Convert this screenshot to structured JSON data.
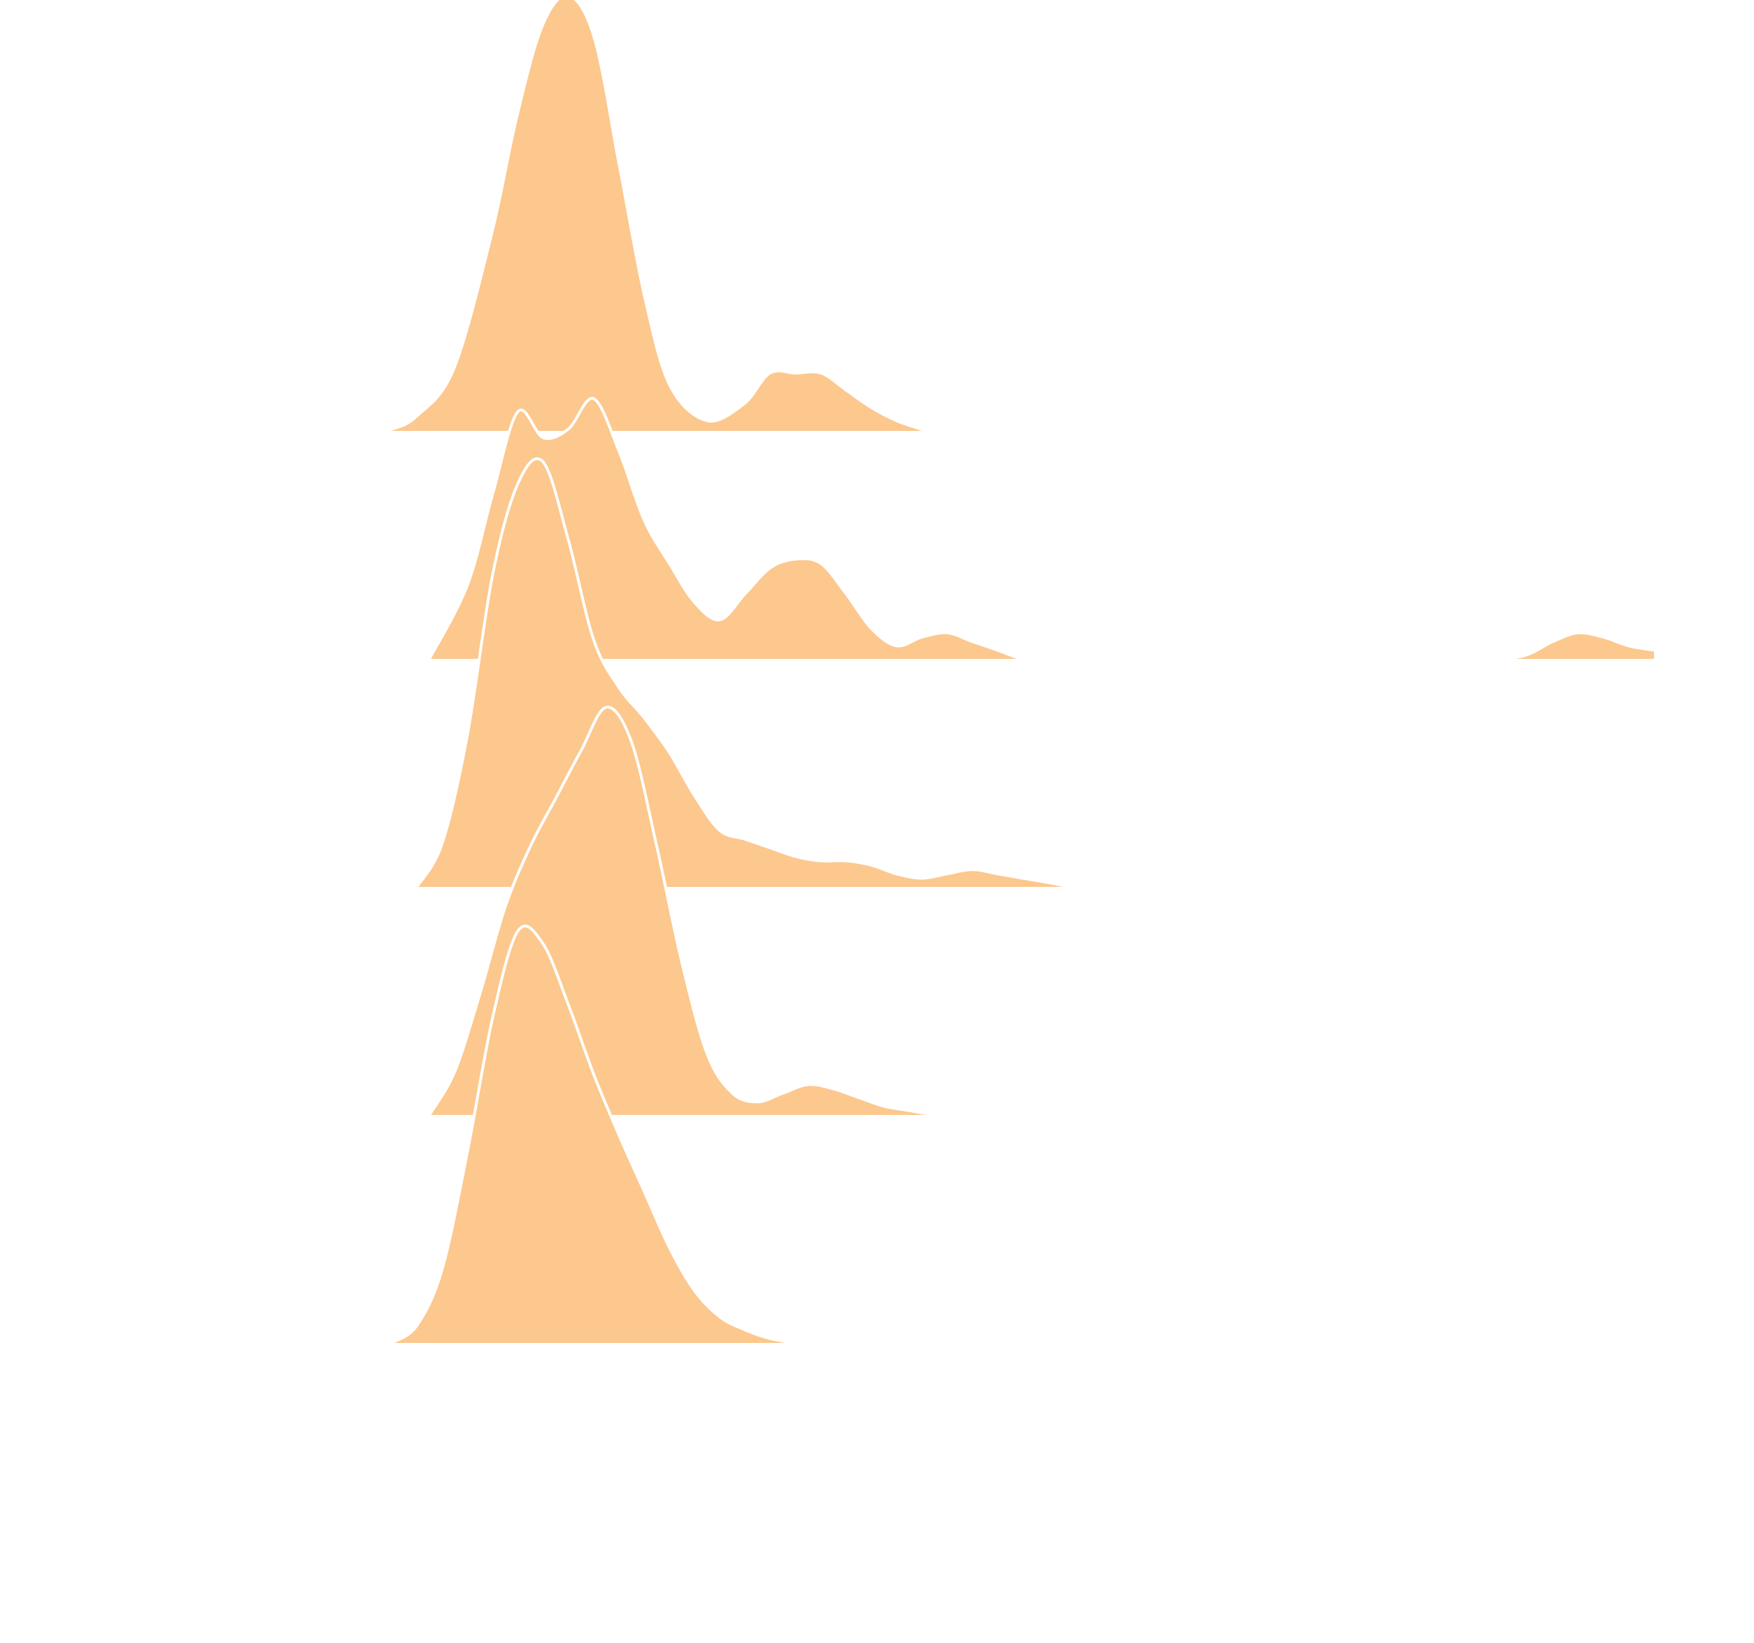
{
  "chart_data": {
    "type": "ridgeline",
    "title": "",
    "xlabel": "",
    "ylabel": "",
    "x_range": [
      0,
      100
    ],
    "fill_color": "#fcc88e",
    "outline_color": "#ffffff",
    "background": "#ffffff",
    "grid": false,
    "legend": "none",
    "series": [
      {
        "x": [
          0,
          2,
          5,
          8,
          10,
          12,
          14,
          16,
          18,
          20,
          22,
          25,
          28,
          30,
          32,
          34,
          36,
          38,
          40,
          42
        ],
        "density": [
          0.0,
          0.03,
          0.14,
          0.45,
          0.72,
          0.93,
          1.0,
          0.9,
          0.6,
          0.3,
          0.1,
          0.02,
          0.06,
          0.13,
          0.13,
          0.13,
          0.09,
          0.05,
          0.02,
          0.0
        ]
      },
      {
        "x": [
          3,
          6,
          8,
          10,
          12,
          14,
          16,
          18,
          20,
          22,
          24,
          26,
          28,
          30,
          32,
          34,
          36,
          38,
          40,
          42,
          44,
          46,
          48,
          50,
          52,
          54,
          56,
          58,
          60,
          62,
          64,
          66,
          68,
          70,
          72,
          74,
          76,
          78,
          80,
          82,
          84,
          86,
          88,
          90,
          92,
          94,
          96,
          98,
          100
        ],
        "density": [
          0.0,
          0.17,
          0.38,
          0.57,
          0.51,
          0.53,
          0.6,
          0.48,
          0.32,
          0.22,
          0.13,
          0.09,
          0.15,
          0.21,
          0.23,
          0.22,
          0.15,
          0.07,
          0.03,
          0.05,
          0.06,
          0.04,
          0.02,
          0.0,
          0.0,
          0.0,
          0.0,
          0.0,
          0.0,
          0.0,
          0.0,
          0.0,
          0.0,
          0.0,
          0.0,
          0.0,
          0.0,
          0.0,
          0.0,
          0.0,
          0.0,
          0.0,
          0.0,
          0.01,
          0.04,
          0.06,
          0.05,
          0.03,
          0.02
        ]
      },
      {
        "x": [
          2,
          4,
          6,
          8,
          10,
          12,
          14,
          16,
          18,
          20,
          22,
          24,
          26,
          28,
          30,
          32,
          34,
          36,
          38,
          40,
          42,
          44,
          46,
          48,
          50,
          52,
          54,
          56,
          58
        ],
        "density": [
          0.0,
          0.1,
          0.35,
          0.72,
          0.93,
          0.98,
          0.8,
          0.57,
          0.46,
          0.39,
          0.31,
          0.21,
          0.13,
          0.11,
          0.09,
          0.07,
          0.06,
          0.06,
          0.05,
          0.03,
          0.02,
          0.03,
          0.04,
          0.03,
          0.02,
          0.01,
          0.0,
          0.0,
          0.0
        ]
      },
      {
        "x": [
          3,
          5,
          7,
          9,
          11,
          13,
          15,
          17,
          19,
          21,
          23,
          25,
          27,
          29,
          31,
          33,
          35,
          37,
          39,
          41,
          43
        ],
        "density": [
          0.0,
          0.1,
          0.28,
          0.48,
          0.62,
          0.73,
          0.84,
          0.94,
          0.86,
          0.62,
          0.35,
          0.14,
          0.05,
          0.03,
          0.05,
          0.07,
          0.06,
          0.04,
          0.02,
          0.01,
          0.0
        ]
      },
      {
        "x": [
          0,
          2,
          4,
          6,
          8,
          10,
          12,
          14,
          16,
          18,
          20,
          22,
          24,
          26,
          28,
          30,
          32
        ],
        "density": [
          0.0,
          0.04,
          0.17,
          0.44,
          0.75,
          0.95,
          0.92,
          0.78,
          0.62,
          0.48,
          0.35,
          0.22,
          0.12,
          0.06,
          0.03,
          0.01,
          0.0
        ]
      }
    ]
  }
}
